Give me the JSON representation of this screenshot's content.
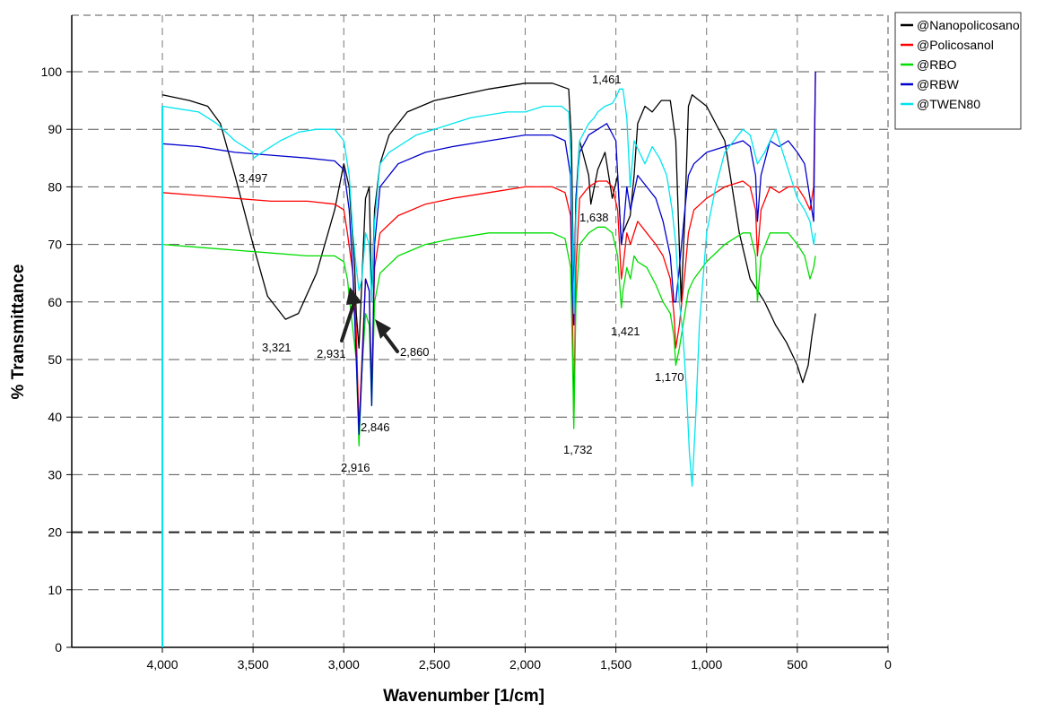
{
  "chart_data": {
    "type": "line",
    "title": "",
    "xlabel": "Wavenumber [1/cm]",
    "ylabel": "% Transmittance",
    "xlim": [
      4500,
      0
    ],
    "ylim": [
      0,
      110
    ],
    "x_reversed": true,
    "x_ticks": [
      4000,
      3500,
      3000,
      2500,
      2000,
      1500,
      1000,
      500,
      0
    ],
    "x_tick_labels": [
      "4,000",
      "3,500",
      "3,000",
      "2,500",
      "2,000",
      "1,500",
      "1,000",
      "500",
      "0"
    ],
    "y_ticks": [
      0,
      10,
      20,
      30,
      40,
      50,
      60,
      70,
      80,
      90,
      100
    ],
    "y_tick_labels": [
      "0",
      "10",
      "20",
      "30",
      "40",
      "50",
      "60",
      "70",
      "80",
      "90",
      "100"
    ],
    "grid": true,
    "grid_style": "dashed",
    "legend_position": "top-right, outside plot",
    "series": [
      {
        "name": "@Nanopolicosano",
        "color": "#000000",
        "x": [
          4000,
          3850,
          3750,
          3680,
          3600,
          3500,
          3420,
          3321,
          3250,
          3150,
          3050,
          3000,
          2970,
          2940,
          2931,
          2916,
          2900,
          2880,
          2860,
          2846,
          2830,
          2800,
          2750,
          2650,
          2500,
          2350,
          2200,
          2000,
          1850,
          1760,
          1745,
          1732,
          1720,
          1700,
          1650,
          1638,
          1600,
          1560,
          1520,
          1490,
          1470,
          1461,
          1421,
          1400,
          1380,
          1340,
          1300,
          1250,
          1200,
          1170,
          1140,
          1120,
          1100,
          1080,
          1000,
          900,
          820,
          760,
          720,
          680,
          620,
          560,
          500,
          470,
          440,
          420,
          400
        ],
        "y": [
          96,
          95,
          94,
          91,
          82,
          70,
          61,
          57,
          58,
          65,
          76,
          84,
          80,
          66,
          58,
          52,
          64,
          78,
          80,
          60,
          76,
          84,
          89,
          93,
          95,
          96,
          97,
          98,
          98,
          97,
          88,
          60,
          78,
          88,
          82,
          77,
          83,
          86,
          78,
          82,
          70,
          72,
          75,
          82,
          91,
          94,
          93,
          95,
          95,
          88,
          60,
          75,
          94,
          96,
          94,
          88,
          72,
          64,
          62,
          60,
          56,
          53,
          49,
          46,
          49,
          54,
          58
        ]
      },
      {
        "name": "@Policosanol",
        "color": "#ff0000",
        "x": [
          4000,
          3800,
          3600,
          3400,
          3200,
          3050,
          3000,
          2980,
          2950,
          2931,
          2916,
          2900,
          2880,
          2860,
          2846,
          2830,
          2800,
          2700,
          2550,
          2400,
          2200,
          2000,
          1850,
          1780,
          1750,
          1740,
          1732,
          1720,
          1700,
          1650,
          1600,
          1550,
          1520,
          1490,
          1470,
          1461,
          1440,
          1420,
          1380,
          1330,
          1280,
          1240,
          1200,
          1180,
          1170,
          1150,
          1120,
          1100,
          1070,
          1000,
          900,
          800,
          760,
          730,
          720,
          700,
          650,
          600,
          550,
          500,
          460,
          430,
          410,
          400
        ],
        "y": [
          79,
          78.5,
          78,
          77.5,
          77.5,
          77,
          76,
          72,
          65,
          55,
          38,
          50,
          64,
          62,
          45,
          66,
          72,
          75,
          77,
          78,
          79,
          80,
          80,
          79,
          75,
          60,
          39,
          66,
          78,
          80,
          81,
          81,
          80,
          76,
          64,
          66,
          72,
          70,
          74,
          72,
          70,
          68,
          64,
          58,
          52,
          56,
          65,
          72,
          76,
          78,
          80,
          81,
          80,
          76,
          68,
          76,
          80,
          79,
          80,
          80,
          78,
          76,
          80,
          100
        ]
      },
      {
        "name": "@RBO",
        "color": "#00dd00",
        "x": [
          4000,
          3800,
          3600,
          3400,
          3200,
          3050,
          3000,
          2980,
          2960,
          2931,
          2916,
          2900,
          2880,
          2860,
          2846,
          2830,
          2800,
          2700,
          2550,
          2400,
          2200,
          2000,
          1850,
          1780,
          1750,
          1740,
          1732,
          1720,
          1700,
          1650,
          1600,
          1560,
          1520,
          1490,
          1470,
          1461,
          1440,
          1420,
          1400,
          1380,
          1330,
          1280,
          1240,
          1200,
          1180,
          1170,
          1150,
          1120,
          1100,
          1070,
          1000,
          900,
          800,
          760,
          730,
          720,
          700,
          650,
          600,
          550,
          500,
          460,
          430,
          410,
          400
        ],
        "y": [
          70,
          69.5,
          69,
          68.5,
          68,
          68,
          67,
          64,
          58,
          50,
          35,
          48,
          58,
          56,
          42,
          60,
          65,
          68,
          70,
          71,
          72,
          72,
          72,
          71,
          66,
          52,
          38,
          60,
          70,
          72,
          73,
          73,
          72,
          68,
          59,
          62,
          66,
          64,
          68,
          67,
          66,
          63,
          60,
          58,
          54,
          49,
          52,
          58,
          62,
          64,
          67,
          70,
          72,
          72,
          68,
          60,
          68,
          72,
          72,
          72,
          70,
          68,
          64,
          66,
          68
        ]
      },
      {
        "name": "@RBW",
        "color": "#0000cc",
        "x": [
          4000,
          3800,
          3600,
          3400,
          3200,
          3050,
          3000,
          2970,
          2950,
          2931,
          2916,
          2900,
          2880,
          2860,
          2846,
          2830,
          2800,
          2700,
          2550,
          2400,
          2200,
          2000,
          1850,
          1780,
          1750,
          1740,
          1732,
          1720,
          1700,
          1650,
          1600,
          1550,
          1500,
          1480,
          1470,
          1461,
          1440,
          1420,
          1380,
          1330,
          1280,
          1240,
          1200,
          1180,
          1170,
          1150,
          1120,
          1100,
          1070,
          1000,
          900,
          800,
          760,
          730,
          720,
          700,
          650,
          600,
          550,
          500,
          460,
          430,
          410,
          400
        ],
        "y": [
          87.5,
          87,
          86,
          85.5,
          85,
          84.5,
          83,
          76,
          65,
          50,
          37,
          48,
          64,
          62,
          42,
          70,
          80,
          84,
          86,
          87,
          88,
          89,
          89,
          88,
          82,
          62,
          56,
          78,
          86,
          89,
          90,
          91,
          88,
          76,
          70,
          72,
          80,
          76,
          82,
          80,
          78,
          74,
          68,
          60,
          60,
          66,
          76,
          82,
          84,
          86,
          87,
          88,
          87,
          82,
          74,
          82,
          88,
          87,
          88,
          86,
          84,
          78,
          74,
          100
        ]
      },
      {
        "name": "@TWEN80",
        "color": "#00e5ee",
        "x": [
          4000,
          3900,
          3800,
          3700,
          3600,
          3500,
          3497,
          3450,
          3350,
          3250,
          3150,
          3050,
          3000,
          2970,
          2950,
          2931,
          2916,
          2900,
          2880,
          2860,
          2846,
          2830,
          2800,
          2750,
          2700,
          2600,
          2500,
          2400,
          2300,
          2200,
          2100,
          2000,
          1900,
          1800,
          1760,
          1750,
          1740,
          1732,
          1720,
          1700,
          1650,
          1620,
          1600,
          1560,
          1520,
          1500,
          1480,
          1461,
          1440,
          1421,
          1400,
          1370,
          1340,
          1300,
          1260,
          1220,
          1190,
          1170,
          1150,
          1130,
          1110,
          1095,
          1080,
          1060,
          1040,
          1000,
          950,
          900,
          850,
          800,
          760,
          720,
          680,
          620,
          560,
          500,
          460,
          430,
          410,
          400
        ],
        "y": [
          94,
          93.5,
          93,
          91,
          88,
          86,
          85,
          86,
          88,
          89.5,
          90,
          90,
          88,
          82,
          72,
          66,
          62,
          64,
          72,
          70,
          60,
          74,
          84,
          86,
          87,
          89,
          90,
          91,
          92,
          92.5,
          93,
          93,
          94,
          94,
          93,
          86,
          72,
          58,
          75,
          88,
          91,
          92,
          93,
          94,
          94.5,
          95.5,
          97,
          97,
          92,
          80,
          88,
          86,
          84,
          87,
          85,
          82,
          76,
          70,
          60,
          54,
          44,
          34,
          28,
          40,
          56,
          72,
          80,
          86,
          88,
          90,
          89,
          84,
          86,
          90,
          84,
          78,
          76,
          74,
          70,
          72
        ]
      }
    ],
    "annotations": [
      {
        "text": "3,497"
      },
      {
        "text": "3,321"
      },
      {
        "text": "2,931"
      },
      {
        "text": "2,860"
      },
      {
        "text": "2,846"
      },
      {
        "text": "2,916"
      },
      {
        "text": "1,732"
      },
      {
        "text": "1,638"
      },
      {
        "text": "1,461"
      },
      {
        "text": "1,421"
      },
      {
        "text": "1,170"
      }
    ]
  }
}
